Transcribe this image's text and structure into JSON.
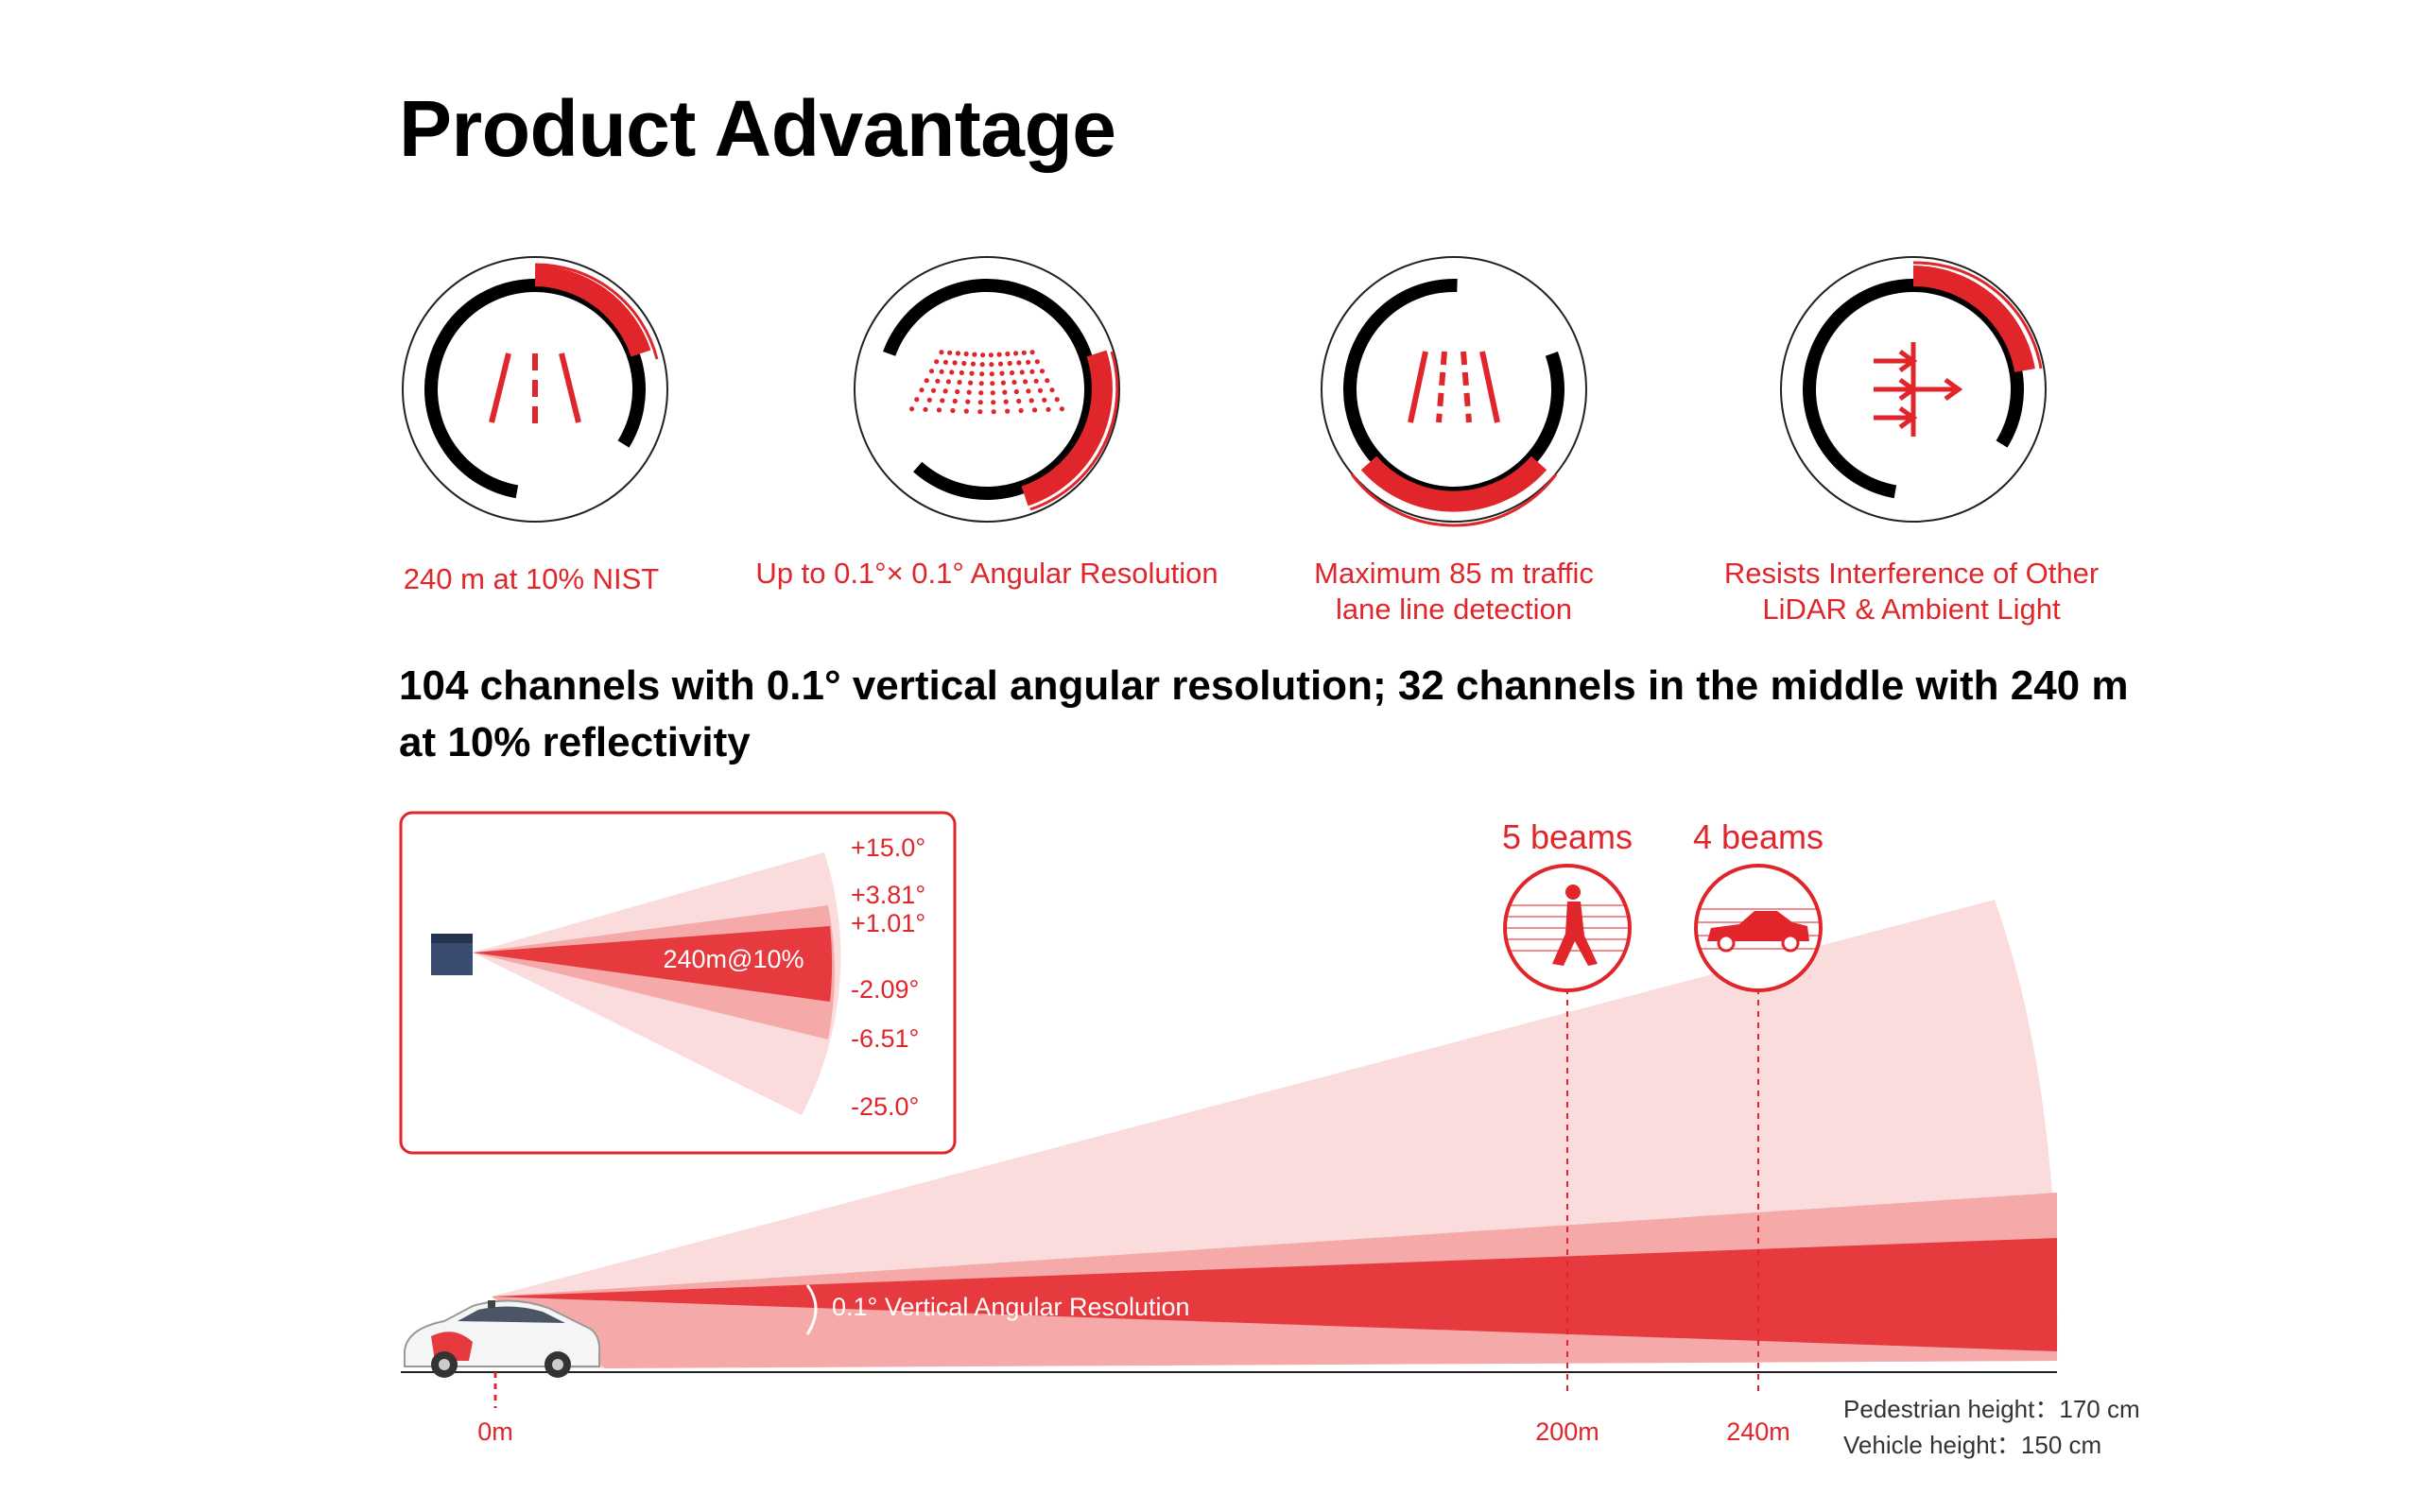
{
  "title": "Product Advantage",
  "features": [
    {
      "label": "240 m at 10% NIST",
      "icon": "road-lanes-icon"
    },
    {
      "label": "Up to 0.1°× 0.1° Angular Resolution",
      "icon": "point-cloud-icon"
    },
    {
      "label_line1": "Maximum 85 m traffic",
      "label_line2": "lane line detection",
      "icon": "lane-lines-icon"
    },
    {
      "label_line1": "Resists Interference of Other",
      "label_line2": "LiDAR & Ambient Light",
      "icon": "interference-arrows-icon"
    }
  ],
  "subtitle": "104 channels with 0.1° vertical angular resolution; 32 channels in the middle with 240 m at 10% reflectivity",
  "inset": {
    "center_label": "240m@10%",
    "angles": [
      "+15.0°",
      "+3.81°",
      "+1.01°",
      "-2.09°",
      "-6.51°",
      "-25.0°"
    ]
  },
  "beams": {
    "pedestrian": {
      "label": "5 beams",
      "distance": "200m",
      "icon": "pedestrian-icon"
    },
    "vehicle": {
      "label": "4 beams",
      "distance": "240m",
      "icon": "car-icon"
    }
  },
  "origin_label": "0m",
  "resolution_label": "0.1° Vertical Angular Resolution",
  "notes": {
    "pedestrian_height": "Pedestrian height：170 cm",
    "vehicle_height": "Vehicle height：150 cm"
  },
  "colors": {
    "accent": "#e0262b",
    "light": "#fad4d4",
    "mid": "#f29a9a",
    "dark": "#000000"
  }
}
